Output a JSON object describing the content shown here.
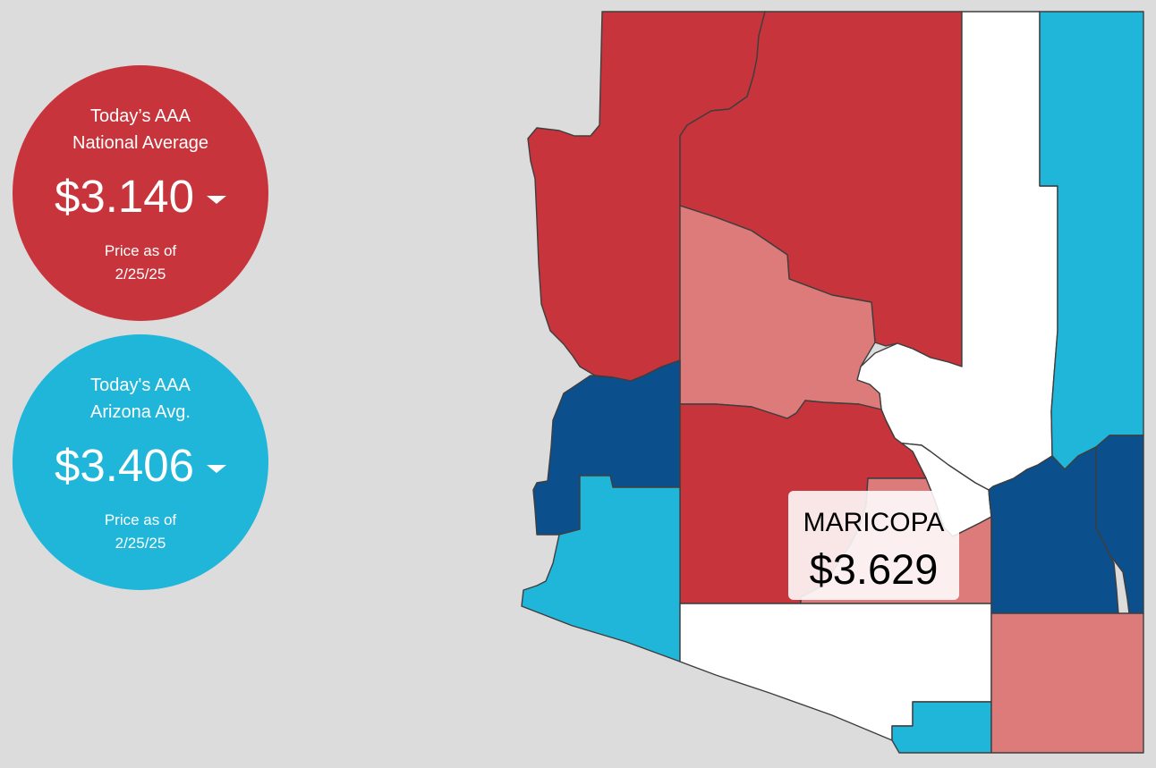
{
  "national": {
    "title_line1": "Today’s AAA",
    "title_line2": "National Average",
    "price": "$3.140",
    "asof_line1": "Price as of",
    "asof_line2": "2/25/25",
    "color": "#c8343b",
    "trend_icon": "caret-down-icon"
  },
  "state": {
    "title_line1": "Today's AAA",
    "title_line2": "Arizona Avg.",
    "price": "$3.406",
    "asof_line1": "Price as of",
    "asof_line2": "2/25/25",
    "color": "#1fb6da",
    "trend_icon": "caret-down-icon"
  },
  "tooltip": {
    "name": "MARICOPA",
    "price": "$3.629"
  },
  "legend_colors": {
    "dark_red": "#c8343b",
    "light_red": "#dc7b7a",
    "white": "#ffffff",
    "light_blue": "#1fb6da",
    "dark_blue": "#0b4f8c"
  },
  "counties": [
    {
      "key": "mohave",
      "color": "#c8343b"
    },
    {
      "key": "coconino",
      "color": "#c8343b"
    },
    {
      "key": "navajo",
      "color": "#ffffff"
    },
    {
      "key": "apache",
      "color": "#1fb6da"
    },
    {
      "key": "yavapai",
      "color": "#dc7b7a"
    },
    {
      "key": "gila",
      "color": "#ffffff"
    },
    {
      "key": "la-paz",
      "color": "#0b4f8c"
    },
    {
      "key": "maricopa",
      "color": "#c8343b"
    },
    {
      "key": "pinal",
      "color": "#dc7b7a"
    },
    {
      "key": "yuma",
      "color": "#1fb6da"
    },
    {
      "key": "pima",
      "color": "#ffffff"
    },
    {
      "key": "graham",
      "color": "#0b4f8c"
    },
    {
      "key": "greenlee",
      "color": "#0b4f8c"
    },
    {
      "key": "santa-cruz",
      "color": "#1fb6da"
    },
    {
      "key": "cochise",
      "color": "#dc7b7a"
    }
  ]
}
